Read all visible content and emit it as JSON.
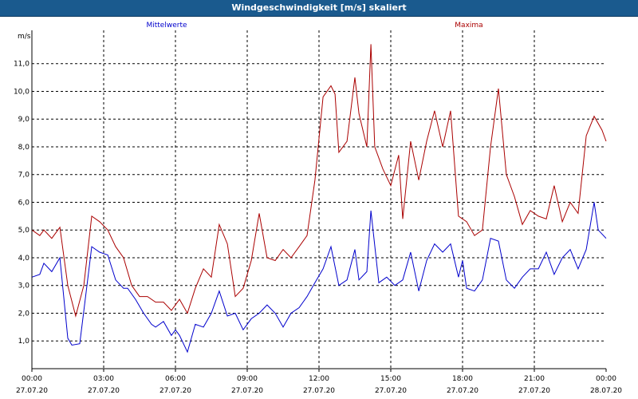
{
  "window": {
    "title": "Windgeschwindigkeit [m/s] skaliert"
  },
  "colors": {
    "mean": "#0000cc",
    "max": "#aa0000",
    "grid": "#000000",
    "title_bg": "#1a5a8e"
  },
  "chart_data": {
    "type": "line",
    "title": "Windgeschwindigkeit [m/s] skaliert",
    "ylabel": "m/s",
    "xlabel": "",
    "ylim": [
      0,
      12.2
    ],
    "xlim": [
      0,
      24
    ],
    "yticks": [
      1.0,
      2.0,
      3.0,
      4.0,
      5.0,
      6.0,
      7.0,
      8.0,
      9.0,
      10.0,
      11.0
    ],
    "ytick_labels": [
      "1,0",
      "2,0",
      "3,0",
      "4,0",
      "5,0",
      "6,0",
      "7,0",
      "8,0",
      "9,0",
      "10,0",
      "11,0"
    ],
    "xticks": [
      {
        "x": 0,
        "time": "00:00",
        "date": "27.07.20"
      },
      {
        "x": 3,
        "time": "03:00",
        "date": "27.07.20"
      },
      {
        "x": 6,
        "time": "06:00",
        "date": "27.07.20"
      },
      {
        "x": 9,
        "time": "09:00",
        "date": "27.07.20"
      },
      {
        "x": 12,
        "time": "12:00",
        "date": "27.07.20"
      },
      {
        "x": 15,
        "time": "15:00",
        "date": "27.07.20"
      },
      {
        "x": 18,
        "time": "18:00",
        "date": "27.07.20"
      },
      {
        "x": 21,
        "time": "21:00",
        "date": "27.07.20"
      },
      {
        "x": 24,
        "time": "00:00",
        "date": "28.07.20"
      }
    ],
    "grid": true,
    "series": [
      {
        "name": "Mittelwerte",
        "color": "#0000cc",
        "points": [
          [
            0,
            3.3
          ],
          [
            0.33,
            3.4
          ],
          [
            0.5,
            3.8
          ],
          [
            0.83,
            3.5
          ],
          [
            1.17,
            4.0
          ],
          [
            1.5,
            1.1
          ],
          [
            1.67,
            0.85
          ],
          [
            2.0,
            0.9
          ],
          [
            2.33,
            3.2
          ],
          [
            2.5,
            4.4
          ],
          [
            2.83,
            4.2
          ],
          [
            3.17,
            4.1
          ],
          [
            3.5,
            3.2
          ],
          [
            3.83,
            2.9
          ],
          [
            4.0,
            2.9
          ],
          [
            4.33,
            2.5
          ],
          [
            4.67,
            2.0
          ],
          [
            5.0,
            1.6
          ],
          [
            5.17,
            1.5
          ],
          [
            5.5,
            1.7
          ],
          [
            5.83,
            1.2
          ],
          [
            6.0,
            1.4
          ],
          [
            6.17,
            1.2
          ],
          [
            6.5,
            0.6
          ],
          [
            6.83,
            1.6
          ],
          [
            7.17,
            1.5
          ],
          [
            7.5,
            2.0
          ],
          [
            7.83,
            2.8
          ],
          [
            8.17,
            1.9
          ],
          [
            8.5,
            2.0
          ],
          [
            8.83,
            1.4
          ],
          [
            9.17,
            1.8
          ],
          [
            9.5,
            2.0
          ],
          [
            9.83,
            2.3
          ],
          [
            10.17,
            2.0
          ],
          [
            10.5,
            1.5
          ],
          [
            10.83,
            2.0
          ],
          [
            11.17,
            2.2
          ],
          [
            11.5,
            2.6
          ],
          [
            11.83,
            3.1
          ],
          [
            12.17,
            3.6
          ],
          [
            12.5,
            4.4
          ],
          [
            12.83,
            3.0
          ],
          [
            13.17,
            3.2
          ],
          [
            13.5,
            4.3
          ],
          [
            13.67,
            3.2
          ],
          [
            14.0,
            3.5
          ],
          [
            14.17,
            5.7
          ],
          [
            14.5,
            3.1
          ],
          [
            14.83,
            3.3
          ],
          [
            15.17,
            3.0
          ],
          [
            15.5,
            3.2
          ],
          [
            15.83,
            4.2
          ],
          [
            16.17,
            2.8
          ],
          [
            16.5,
            3.9
          ],
          [
            16.83,
            4.5
          ],
          [
            17.17,
            4.2
          ],
          [
            17.5,
            4.5
          ],
          [
            17.83,
            3.3
          ],
          [
            18.0,
            3.9
          ],
          [
            18.17,
            2.9
          ],
          [
            18.5,
            2.8
          ],
          [
            18.83,
            3.2
          ],
          [
            19.17,
            4.7
          ],
          [
            19.5,
            4.6
          ],
          [
            19.83,
            3.2
          ],
          [
            20.17,
            2.9
          ],
          [
            20.5,
            3.3
          ],
          [
            20.83,
            3.6
          ],
          [
            21.17,
            3.6
          ],
          [
            21.5,
            4.2
          ],
          [
            21.83,
            3.4
          ],
          [
            22.17,
            4.0
          ],
          [
            22.5,
            4.3
          ],
          [
            22.83,
            3.6
          ],
          [
            23.17,
            4.3
          ],
          [
            23.5,
            6.0
          ],
          [
            23.67,
            5.0
          ],
          [
            24.0,
            4.7
          ]
        ]
      },
      {
        "name": "Maxima",
        "color": "#aa0000",
        "points": [
          [
            0,
            5.0
          ],
          [
            0.33,
            4.8
          ],
          [
            0.5,
            5.0
          ],
          [
            0.83,
            4.7
          ],
          [
            1.17,
            5.1
          ],
          [
            1.5,
            3.0
          ],
          [
            1.83,
            1.9
          ],
          [
            2.17,
            3.0
          ],
          [
            2.5,
            5.5
          ],
          [
            2.83,
            5.3
          ],
          [
            3.17,
            5.0
          ],
          [
            3.5,
            4.4
          ],
          [
            3.83,
            4.0
          ],
          [
            4.17,
            3.0
          ],
          [
            4.5,
            2.6
          ],
          [
            4.83,
            2.6
          ],
          [
            5.17,
            2.4
          ],
          [
            5.5,
            2.4
          ],
          [
            5.83,
            2.1
          ],
          [
            6.17,
            2.5
          ],
          [
            6.5,
            2.0
          ],
          [
            6.83,
            2.9
          ],
          [
            7.17,
            3.6
          ],
          [
            7.5,
            3.3
          ],
          [
            7.83,
            5.2
          ],
          [
            8.17,
            4.5
          ],
          [
            8.5,
            2.6
          ],
          [
            8.83,
            2.9
          ],
          [
            9.17,
            3.9
          ],
          [
            9.5,
            5.6
          ],
          [
            9.83,
            4.0
          ],
          [
            10.17,
            3.9
          ],
          [
            10.5,
            4.3
          ],
          [
            10.83,
            4.0
          ],
          [
            11.17,
            4.4
          ],
          [
            11.5,
            4.8
          ],
          [
            11.83,
            6.8
          ],
          [
            12.17,
            9.8
          ],
          [
            12.5,
            10.2
          ],
          [
            12.67,
            9.9
          ],
          [
            12.83,
            7.8
          ],
          [
            13.17,
            8.2
          ],
          [
            13.5,
            10.5
          ],
          [
            13.67,
            9.2
          ],
          [
            14.0,
            8.0
          ],
          [
            14.17,
            11.7
          ],
          [
            14.33,
            8.0
          ],
          [
            14.67,
            7.2
          ],
          [
            15.0,
            6.6
          ],
          [
            15.33,
            7.7
          ],
          [
            15.5,
            5.4
          ],
          [
            15.83,
            8.2
          ],
          [
            16.17,
            6.8
          ],
          [
            16.5,
            8.2
          ],
          [
            16.83,
            9.3
          ],
          [
            17.17,
            8.0
          ],
          [
            17.5,
            9.3
          ],
          [
            17.83,
            5.5
          ],
          [
            18.17,
            5.3
          ],
          [
            18.5,
            4.8
          ],
          [
            18.83,
            5.0
          ],
          [
            19.17,
            8.0
          ],
          [
            19.5,
            10.1
          ],
          [
            19.83,
            7.0
          ],
          [
            20.17,
            6.2
          ],
          [
            20.5,
            5.2
          ],
          [
            20.83,
            5.7
          ],
          [
            21.17,
            5.5
          ],
          [
            21.5,
            5.4
          ],
          [
            21.83,
            6.6
          ],
          [
            22.17,
            5.3
          ],
          [
            22.5,
            6.0
          ],
          [
            22.83,
            5.6
          ],
          [
            23.17,
            8.4
          ],
          [
            23.5,
            9.1
          ],
          [
            23.83,
            8.6
          ],
          [
            24.0,
            8.2
          ]
        ]
      }
    ]
  }
}
